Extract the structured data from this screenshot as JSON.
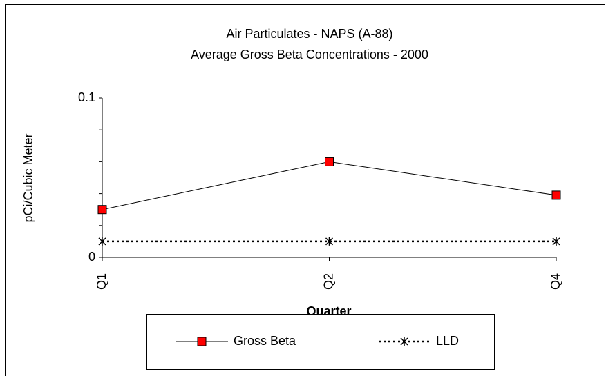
{
  "chart_data": {
    "type": "line",
    "title": "Air Particulates - NAPS (A-88)",
    "subtitle": "Average Gross Beta Concentrations - 2000",
    "x_label": "Quarter",
    "y_label": "pCi/Cubic Meter",
    "categories": [
      "Q1",
      "Q2",
      "Q4"
    ],
    "series": [
      {
        "name": "Gross Beta",
        "color": "#ff0000",
        "values": [
          0.03,
          0.06,
          0.039
        ]
      },
      {
        "name": "LLD",
        "color": "#000000",
        "values": [
          0.01,
          0.01,
          0.01
        ]
      }
    ],
    "ylim": [
      0,
      0.1
    ],
    "yticks": [
      0,
      0.1
    ],
    "yminorticks": [
      0.02,
      0.04,
      0.06,
      0.08
    ],
    "grid": false,
    "legend": "bottom"
  }
}
